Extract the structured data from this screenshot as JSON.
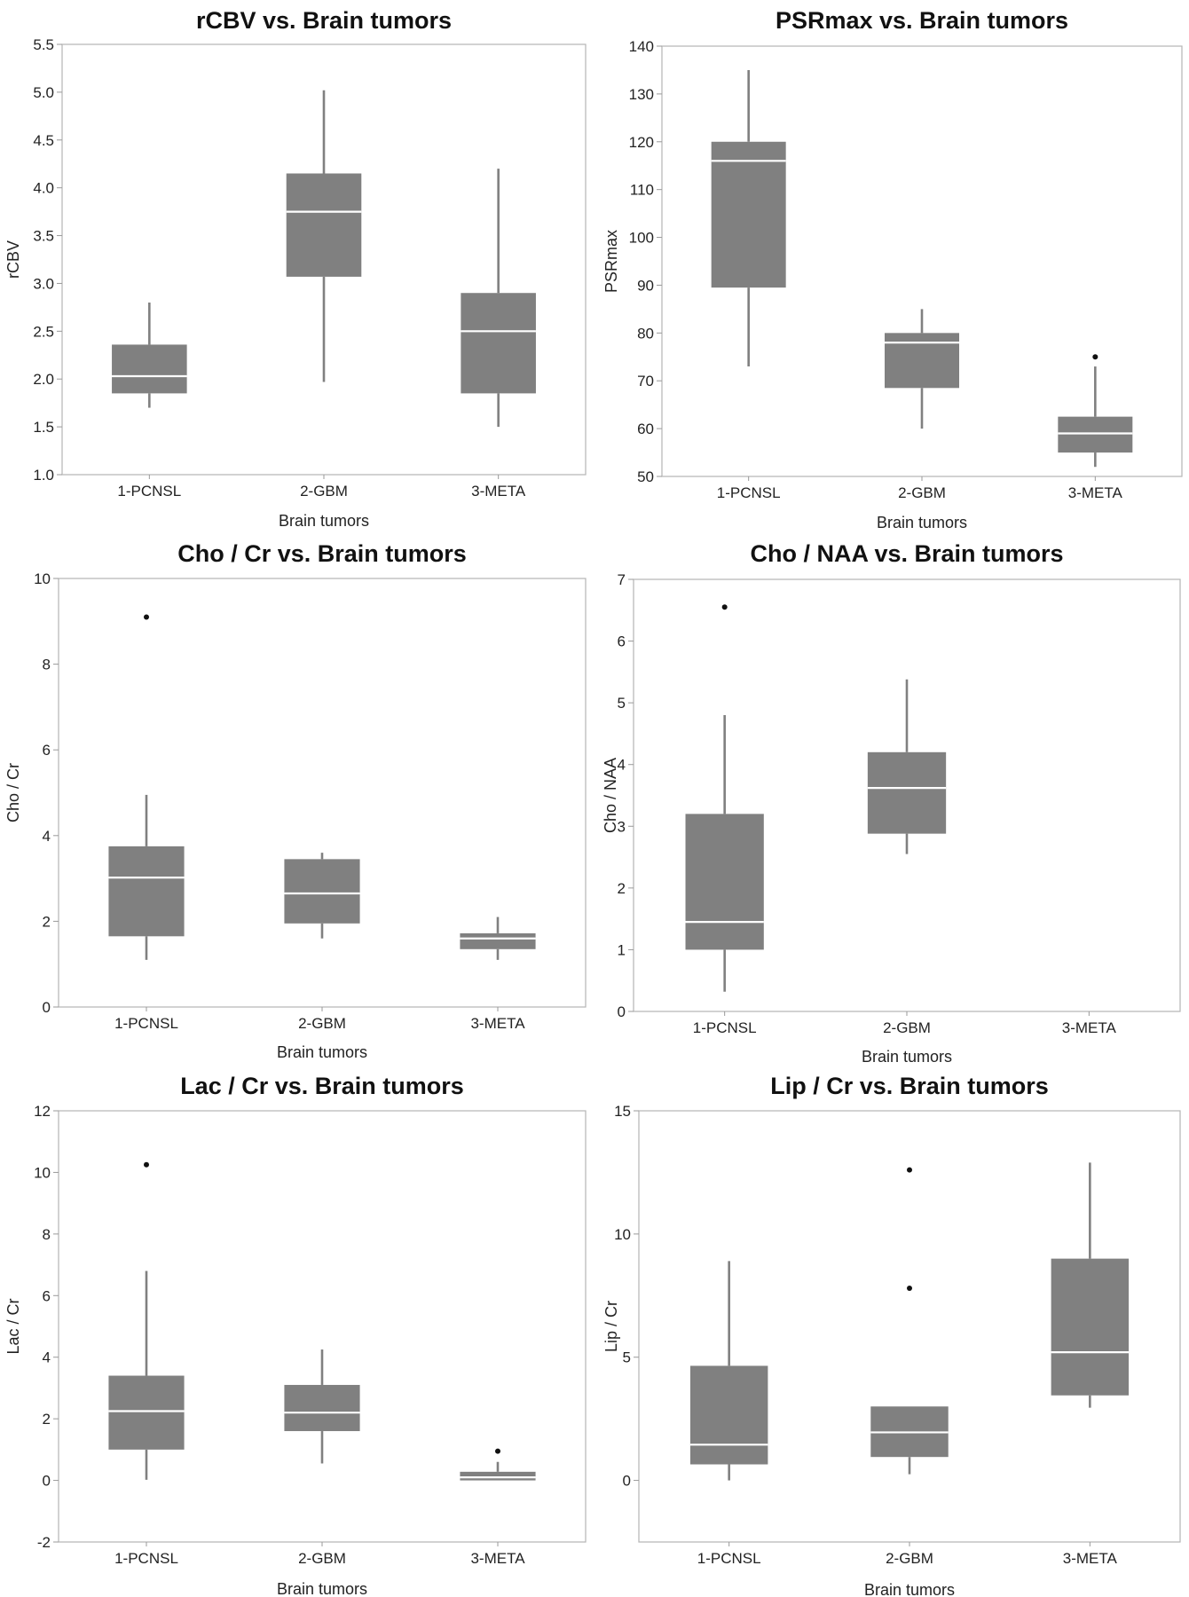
{
  "chart_data": [
    {
      "type": "box",
      "title": "rCBV vs. Brain tumors",
      "xlabel": "Brain tumors",
      "ylabel": "rCBV",
      "ylim": [
        1.0,
        5.5
      ],
      "yticks": [
        "1.0",
        "1.5",
        "2.0",
        "2.5",
        "3.0",
        "3.5",
        "4.0",
        "4.5",
        "5.0",
        "5.5"
      ],
      "categories": [
        "1-PCNSL",
        "2-GBM",
        "3-META"
      ],
      "boxes": [
        {
          "min": 1.7,
          "q1": 1.85,
          "median": 2.03,
          "q3": 2.36,
          "max": 2.8,
          "outliers": []
        },
        {
          "min": 1.97,
          "q1": 3.07,
          "median": 3.75,
          "q3": 4.15,
          "max": 5.02,
          "outliers": []
        },
        {
          "min": 1.5,
          "q1": 1.85,
          "median": 2.5,
          "q3": 2.9,
          "max": 4.2,
          "outliers": []
        }
      ]
    },
    {
      "type": "box",
      "title": "PSRmax vs. Brain tumors",
      "xlabel": "Brain tumors",
      "ylabel": "PSRmax",
      "ylim": [
        50,
        140
      ],
      "yticks": [
        "50",
        "60",
        "70",
        "80",
        "90",
        "100",
        "110",
        "120",
        "130",
        "140"
      ],
      "categories": [
        "1-PCNSL",
        "2-GBM",
        "3-META"
      ],
      "boxes": [
        {
          "min": 73,
          "q1": 89.5,
          "median": 116,
          "q3": 120,
          "max": 135,
          "outliers": []
        },
        {
          "min": 60,
          "q1": 68.5,
          "median": 78,
          "q3": 80,
          "max": 85,
          "outliers": []
        },
        {
          "min": 52,
          "q1": 55,
          "median": 59,
          "q3": 62.5,
          "max": 73,
          "outliers": [
            75
          ]
        }
      ]
    },
    {
      "type": "box",
      "title": "Cho / Cr vs. Brain tumors",
      "xlabel": "Brain tumors",
      "ylabel": "Cho / Cr",
      "ylim": [
        0,
        10
      ],
      "yticks": [
        "0",
        "2",
        "4",
        "6",
        "8",
        "10"
      ],
      "categories": [
        "1-PCNSL",
        "2-GBM",
        "3-META"
      ],
      "boxes": [
        {
          "min": 1.1,
          "q1": 1.65,
          "median": 3.02,
          "q3": 3.75,
          "max": 4.95,
          "outliers": [
            9.1
          ]
        },
        {
          "min": 1.6,
          "q1": 1.95,
          "median": 2.65,
          "q3": 3.45,
          "max": 3.6,
          "outliers": []
        },
        {
          "min": 1.1,
          "q1": 1.35,
          "median": 1.6,
          "q3": 1.72,
          "max": 2.1,
          "outliers": []
        }
      ]
    },
    {
      "type": "box",
      "title": "Cho / NAA vs. Brain tumors",
      "xlabel": "Brain tumors",
      "ylabel": "Cho / NAA",
      "ylim": [
        0,
        7
      ],
      "yticks": [
        "0",
        "1",
        "2",
        "3",
        "4",
        "5",
        "6",
        "7"
      ],
      "categories": [
        "1-PCNSL",
        "2-GBM",
        "3-META"
      ],
      "boxes": [
        {
          "min": 0.32,
          "q1": 1.0,
          "median": 1.45,
          "q3": 3.2,
          "max": 4.8,
          "outliers": [
            6.55
          ]
        },
        {
          "min": 2.55,
          "q1": 2.88,
          "median": 3.62,
          "q3": 4.2,
          "max": 5.38,
          "outliers": []
        },
        null
      ]
    },
    {
      "type": "box",
      "title": "Lac / Cr vs. Brain tumors",
      "xlabel": "Brain tumors",
      "ylabel": "Lac / Cr",
      "ylim": [
        -2,
        12
      ],
      "yticks": [
        "-2",
        "0",
        "2",
        "4",
        "6",
        "8",
        "10",
        "12"
      ],
      "categories": [
        "1-PCNSL",
        "2-GBM",
        "3-META"
      ],
      "boxes": [
        {
          "min": 0.02,
          "q1": 1.0,
          "median": 2.25,
          "q3": 3.4,
          "max": 6.8,
          "outliers": [
            10.25
          ]
        },
        {
          "min": 0.55,
          "q1": 1.6,
          "median": 2.2,
          "q3": 3.1,
          "max": 4.25,
          "outliers": []
        },
        {
          "min": 0.0,
          "q1": 0.0,
          "median": 0.1,
          "q3": 0.28,
          "max": 0.6,
          "outliers": [
            0.95
          ]
        }
      ]
    },
    {
      "type": "box",
      "title": "Lip / Cr vs. Brain tumors",
      "xlabel": "Brain tumors",
      "ylabel": "Lip / Cr",
      "ylim": [
        -2.5,
        15
      ],
      "yticks": [
        "0",
        "5",
        "10",
        "15"
      ],
      "categories": [
        "1-PCNSL",
        "2-GBM",
        "3-META"
      ],
      "boxes": [
        {
          "min": 0.0,
          "q1": 0.65,
          "median": 1.45,
          "q3": 4.65,
          "max": 8.9,
          "outliers": []
        },
        {
          "min": 0.25,
          "q1": 0.95,
          "median": 1.95,
          "q3": 3.0,
          "max": 3.0,
          "outliers": [
            12.6,
            7.8
          ]
        },
        {
          "min": 2.95,
          "q1": 3.45,
          "median": 5.2,
          "q3": 9.0,
          "max": 12.9,
          "outliers": []
        }
      ]
    }
  ]
}
